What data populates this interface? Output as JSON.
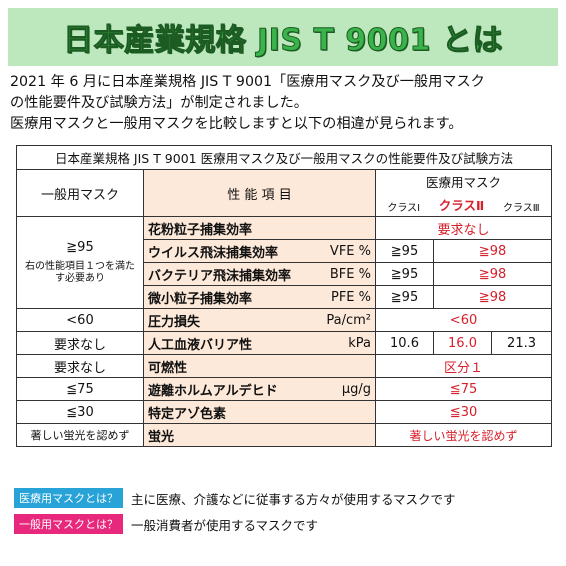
{
  "banner": {
    "title": "日本産業規格 JIS T 9001 とは"
  },
  "intro": {
    "line1": "2021 年 6 月に日本産業規格 JIS T 9001「医療用マスク及び一般用マスク",
    "line2": "の性能要件及び試験方法」が制定されました。",
    "line3": "医療用マスクと一般用マスクを比較しますと以下の相違が見られます。"
  },
  "table": {
    "caption": "日本産業規格 JIS T 9001 医療用マスク及び一般用マスクの性能要件及び試験方法",
    "header": {
      "general": "一般用マスク",
      "items": "性 能 項 目",
      "medical": "医療用マスク",
      "class1": "クラスⅠ",
      "class2": "クラスⅡ",
      "class3": "クラスⅢ"
    },
    "general_filter_value": "≧95",
    "general_filter_note": "右の性能項目１つを満たす必要あり",
    "rows": [
      {
        "item": "花粉粒子捕集効率",
        "unit": "",
        "medical": "要求なし"
      },
      {
        "item": "ウイルス飛沫捕集効率",
        "unit": "VFE %",
        "class1": "≧95",
        "class23": "≧98"
      },
      {
        "item": "バクテリア飛沫捕集効率",
        "unit": "BFE %",
        "class1": "≧95",
        "class23": "≧98"
      },
      {
        "item": "微小粒子捕集効率",
        "unit": "PFE %",
        "class1": "≧95",
        "class23": "≧98"
      },
      {
        "general": "<60",
        "item": "圧力損失",
        "unit": "Pa/cm²",
        "medical": "<60"
      },
      {
        "general": "要求なし",
        "item": "人工血液バリア性",
        "unit": "kPa",
        "class1": "10.6",
        "class2": "16.0",
        "class3": "21.3"
      },
      {
        "general": "要求なし",
        "item": "可燃性",
        "unit": "",
        "medical": "区分１"
      },
      {
        "general": "≦75",
        "item": "遊離ホルムアルデヒド",
        "unit": "μg/g",
        "medical": "≦75"
      },
      {
        "general": "≦30",
        "item": "特定アゾ色素",
        "unit": "",
        "medical": "≦30"
      },
      {
        "general": "著しい蛍光を認めず",
        "item": "蛍光",
        "unit": "",
        "medical": "著しい蛍光を認めず"
      }
    ]
  },
  "legend": {
    "medical_tag": "医療用マスクとは？",
    "medical_text": "主に医療、介護などに従事する方々が使用するマスクです",
    "general_tag": "一般用マスクとは？",
    "general_text": "一般消費者が使用するマスクです"
  },
  "colors": {
    "banner_bg": "#bde7bd",
    "banner_text": "#3ab34a",
    "item_bg": "#fde9d9",
    "accent_red": "#d6202b",
    "tag_blue": "#27a3d8",
    "tag_pink": "#e8287d"
  }
}
